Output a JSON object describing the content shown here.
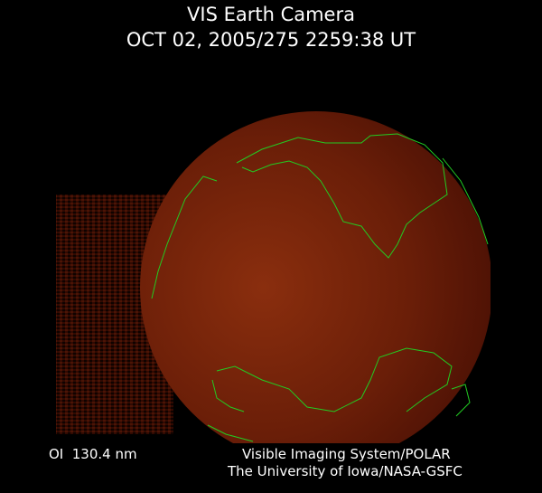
{
  "header": {
    "title": "VIS Earth Camera",
    "timestamp": "OCT 02, 2005/275 2259:38 UT"
  },
  "footer": {
    "band": "OI  130.4 nm",
    "credit_line1": "Visible Imaging System/POLAR",
    "credit_line2": "The University of Iowa/NASA-GSFC"
  },
  "colors": {
    "background": "#000000",
    "earth_glow": "#6a1e08",
    "coastline": "#22cc22"
  }
}
